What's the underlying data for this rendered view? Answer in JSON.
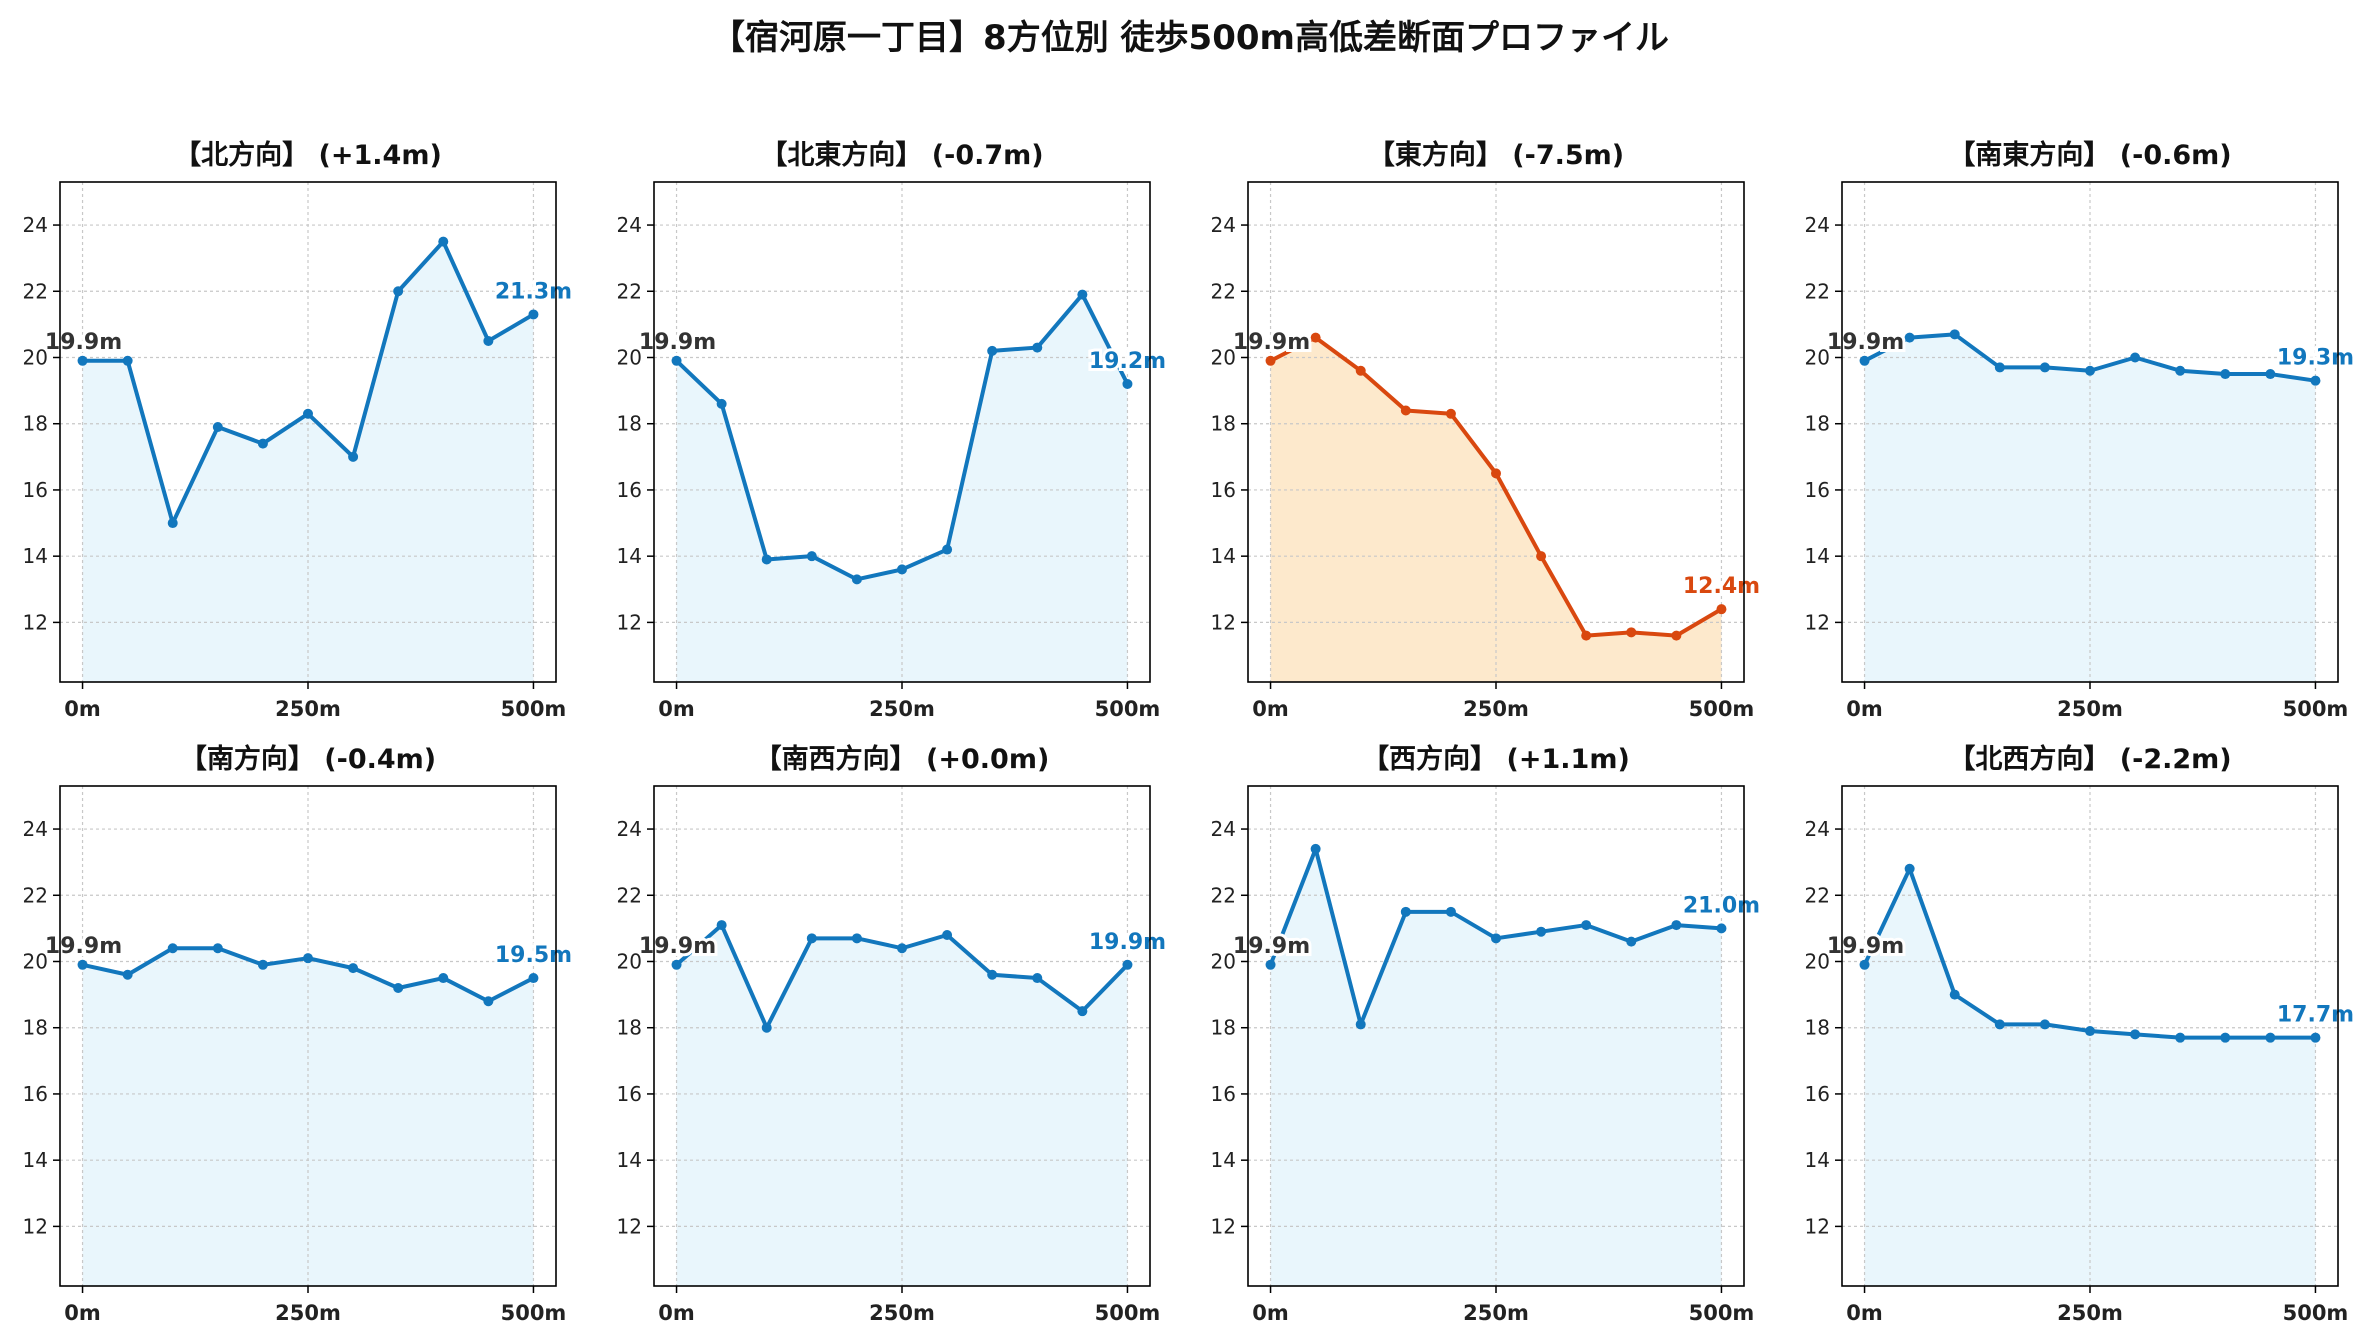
{
  "title": "【宿河原一丁目】8方位別 徒歩500m高低差断面プロファイル",
  "colors": {
    "normal_line": "#1277bd",
    "normal_fill": "#e9f6fc",
    "highlight_line": "#d9480f",
    "highlight_fill": "#fde9cc",
    "start_label": "#333333",
    "grid": "#c8c8c8",
    "axis": "#000000"
  },
  "chart_data": [
    {
      "type": "line",
      "title": "【北方向】 (+1.4m)",
      "highlight": false,
      "x": [
        0,
        50,
        100,
        150,
        200,
        250,
        300,
        350,
        400,
        450,
        500
      ],
      "y": [
        19.9,
        19.9,
        15.0,
        17.9,
        17.4,
        18.3,
        17.0,
        22.0,
        23.5,
        20.5,
        21.3
      ],
      "start_label": "19.9m",
      "end_label": "21.3m",
      "xticks": [
        "0m",
        "250m",
        "500m"
      ],
      "yticks": [
        "12",
        "14",
        "16",
        "18",
        "20",
        "22",
        "24"
      ],
      "xlim": [
        -25,
        525
      ],
      "ylim": [
        10.2,
        25.3
      ],
      "grid": true
    },
    {
      "type": "line",
      "title": "【北東方向】 (-0.7m)",
      "highlight": false,
      "x": [
        0,
        50,
        100,
        150,
        200,
        250,
        300,
        350,
        400,
        450,
        500
      ],
      "y": [
        19.9,
        18.6,
        13.9,
        14.0,
        13.3,
        13.6,
        14.2,
        20.2,
        20.3,
        21.9,
        19.2
      ],
      "start_label": "19.9m",
      "end_label": "19.2m",
      "xticks": [
        "0m",
        "250m",
        "500m"
      ],
      "yticks": [
        "12",
        "14",
        "16",
        "18",
        "20",
        "22",
        "24"
      ],
      "xlim": [
        -25,
        525
      ],
      "ylim": [
        10.2,
        25.3
      ],
      "grid": true
    },
    {
      "type": "line",
      "title": "【東方向】 (-7.5m)",
      "highlight": true,
      "x": [
        0,
        50,
        100,
        150,
        200,
        250,
        300,
        350,
        400,
        450,
        500
      ],
      "y": [
        19.9,
        20.6,
        19.6,
        18.4,
        18.3,
        16.5,
        14.0,
        11.6,
        11.7,
        11.6,
        12.4
      ],
      "start_label": "19.9m",
      "end_label": "12.4m",
      "xticks": [
        "0m",
        "250m",
        "500m"
      ],
      "yticks": [
        "12",
        "14",
        "16",
        "18",
        "20",
        "22",
        "24"
      ],
      "xlim": [
        -25,
        525
      ],
      "ylim": [
        10.2,
        25.3
      ],
      "grid": true
    },
    {
      "type": "line",
      "title": "【南東方向】 (-0.6m)",
      "highlight": false,
      "x": [
        0,
        50,
        100,
        150,
        200,
        250,
        300,
        350,
        400,
        450,
        500
      ],
      "y": [
        19.9,
        20.6,
        20.7,
        19.7,
        19.7,
        19.6,
        20.0,
        19.6,
        19.5,
        19.5,
        19.3
      ],
      "start_label": "19.9m",
      "end_label": "19.3m",
      "xticks": [
        "0m",
        "250m",
        "500m"
      ],
      "yticks": [
        "12",
        "14",
        "16",
        "18",
        "20",
        "22",
        "24"
      ],
      "xlim": [
        -25,
        525
      ],
      "ylim": [
        10.2,
        25.3
      ],
      "grid": true
    },
    {
      "type": "line",
      "title": "【南方向】 (-0.4m)",
      "highlight": false,
      "x": [
        0,
        50,
        100,
        150,
        200,
        250,
        300,
        350,
        400,
        450,
        500
      ],
      "y": [
        19.9,
        19.6,
        20.4,
        20.4,
        19.9,
        20.1,
        19.8,
        19.2,
        19.5,
        18.8,
        19.5
      ],
      "start_label": "19.9m",
      "end_label": "19.5m",
      "xticks": [
        "0m",
        "250m",
        "500m"
      ],
      "yticks": [
        "12",
        "14",
        "16",
        "18",
        "20",
        "22",
        "24"
      ],
      "xlim": [
        -25,
        525
      ],
      "ylim": [
        10.2,
        25.3
      ],
      "grid": true
    },
    {
      "type": "line",
      "title": "【南西方向】 (+0.0m)",
      "highlight": false,
      "x": [
        0,
        50,
        100,
        150,
        200,
        250,
        300,
        350,
        400,
        450,
        500
      ],
      "y": [
        19.9,
        21.1,
        18.0,
        20.7,
        20.7,
        20.4,
        20.8,
        19.6,
        19.5,
        18.5,
        19.9
      ],
      "start_label": "19.9m",
      "end_label": "19.9m",
      "xticks": [
        "0m",
        "250m",
        "500m"
      ],
      "yticks": [
        "12",
        "14",
        "16",
        "18",
        "20",
        "22",
        "24"
      ],
      "xlim": [
        -25,
        525
      ],
      "ylim": [
        10.2,
        25.3
      ],
      "grid": true
    },
    {
      "type": "line",
      "title": "【西方向】 (+1.1m)",
      "highlight": false,
      "x": [
        0,
        50,
        100,
        150,
        200,
        250,
        300,
        350,
        400,
        450,
        500
      ],
      "y": [
        19.9,
        23.4,
        18.1,
        21.5,
        21.5,
        20.7,
        20.9,
        21.1,
        20.6,
        21.1,
        21.0
      ],
      "start_label": "19.9m",
      "end_label": "21.0m",
      "xticks": [
        "0m",
        "250m",
        "500m"
      ],
      "yticks": [
        "12",
        "14",
        "16",
        "18",
        "20",
        "22",
        "24"
      ],
      "xlim": [
        -25,
        525
      ],
      "ylim": [
        10.2,
        25.3
      ],
      "grid": true
    },
    {
      "type": "line",
      "title": "【北西方向】 (-2.2m)",
      "highlight": false,
      "x": [
        0,
        50,
        100,
        150,
        200,
        250,
        300,
        350,
        400,
        450,
        500
      ],
      "y": [
        19.9,
        22.8,
        19.0,
        18.1,
        18.1,
        17.9,
        17.8,
        17.7,
        17.7,
        17.7,
        17.7
      ],
      "start_label": "19.9m",
      "end_label": "17.7m",
      "xticks": [
        "0m",
        "250m",
        "500m"
      ],
      "yticks": [
        "12",
        "14",
        "16",
        "18",
        "20",
        "22",
        "24"
      ],
      "xlim": [
        -25,
        525
      ],
      "ylim": [
        10.2,
        25.3
      ],
      "grid": true
    }
  ]
}
